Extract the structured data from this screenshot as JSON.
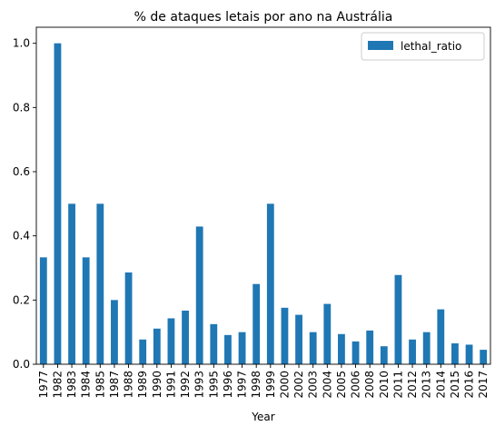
{
  "chart_data": {
    "type": "bar",
    "title": "% de ataques letais por ano na Austrália",
    "xlabel": "Year",
    "ylabel": "",
    "ylim": [
      0,
      1.05
    ],
    "yticks": [
      "0.0",
      "0.2",
      "0.4",
      "0.6",
      "0.8",
      "1.0"
    ],
    "legend_position": "top-right",
    "grid": false,
    "categories": [
      "1977",
      "1982",
      "1983",
      "1984",
      "1985",
      "1987",
      "1988",
      "1989",
      "1990",
      "1991",
      "1992",
      "1993",
      "1995",
      "1996",
      "1997",
      "1998",
      "1999",
      "2000",
      "2002",
      "2003",
      "2004",
      "2005",
      "2006",
      "2008",
      "2010",
      "2011",
      "2012",
      "2013",
      "2014",
      "2015",
      "2016",
      "2017"
    ],
    "series": [
      {
        "name": "lethal_ratio",
        "color": "#1f77b4",
        "values": [
          0.333,
          1.0,
          0.5,
          0.333,
          0.5,
          0.2,
          0.286,
          0.077,
          0.111,
          0.143,
          0.167,
          0.429,
          0.125,
          0.091,
          0.1,
          0.25,
          0.5,
          0.176,
          0.154,
          0.1,
          0.188,
          0.094,
          0.071,
          0.105,
          0.056,
          0.278,
          0.077,
          0.1,
          0.171,
          0.065,
          0.061,
          0.045
        ]
      }
    ]
  }
}
